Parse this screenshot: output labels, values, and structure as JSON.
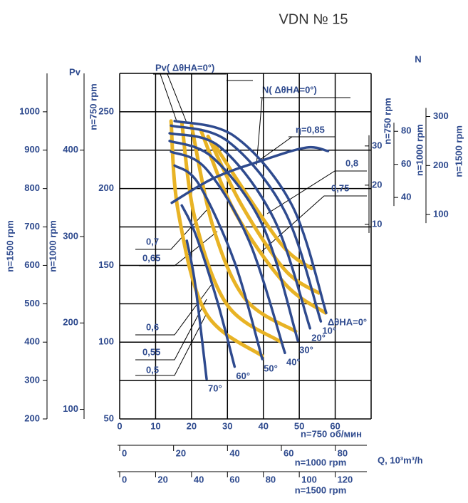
{
  "chart_data": {
    "type": "line",
    "title": "VDN № 15",
    "xlim": [
      0,
      70
    ],
    "xticks": [
      0,
      10,
      20,
      30,
      40,
      50,
      60
    ],
    "x_label": "n=750 об/мин",
    "ylim": [
      50,
      275
    ],
    "yticks": [
      50,
      100,
      150,
      200,
      250
    ],
    "y_minor": [
      75,
      125,
      175,
      225
    ],
    "y_label": "Pv",
    "y_axis_speed": "n=750 rpm",
    "grid": true,
    "y2_label": "N",
    "y2lim": [
      -39.6,
      48.5
    ],
    "y2ticks": [
      10,
      20,
      30
    ],
    "y2_axis_speed": "n=750 rpm",
    "extra_y_axes": [
      {
        "label": "n=1500 rpm",
        "side": "left",
        "ylim": [
          200,
          1100
        ],
        "yticks": [
          200,
          300,
          400,
          500,
          600,
          700,
          800,
          900,
          1000
        ]
      },
      {
        "label": "n=1000 rpm",
        "side": "left",
        "ylim": [
          88.9,
          488.9
        ],
        "yticks": [
          100,
          200,
          300,
          400
        ]
      },
      {
        "label": "n=1000 rpm",
        "side": "right",
        "ylim": [
          -93.9,
          115
        ],
        "yticks": [
          40,
          60,
          80
        ]
      },
      {
        "label": "n=1500 rpm",
        "side": "right",
        "ylim": [
          -317,
          388
        ],
        "yticks": [
          100,
          200,
          300
        ]
      }
    ],
    "extra_x_axes": [
      {
        "label": "n=1000 rpm",
        "xlim": [
          0,
          93.3
        ],
        "xticks": [
          0,
          20,
          40,
          60,
          80
        ]
      },
      {
        "label": "n=1500 rpm",
        "xlim": [
          0,
          140
        ],
        "xticks": [
          0,
          20,
          40,
          60,
          80,
          100,
          120
        ]
      }
    ],
    "q_label": "Q, 10³m³/h",
    "pv_curve_label": "Pv( ΔθНА=0°)",
    "n_curve_label": "N( ΔθНА=0°)",
    "efficiency_labels": [
      "η=0,85",
      "0,8",
      "0,75",
      "0,7",
      "0,65",
      "0,6",
      "0,55",
      "0,5"
    ],
    "series": [
      {
        "name": "ΔθНА=0°",
        "color": "#2e4a8e",
        "x": [
          15.3,
          32,
          48,
          57.5
        ],
        "values": [
          244,
          234,
          189,
          119
        ]
      },
      {
        "name": "10°",
        "color": "#2e4a8e",
        "x": [
          14.3,
          30,
          46,
          56
        ],
        "values": [
          241,
          231,
          185,
          113.5
        ]
      },
      {
        "name": "20°",
        "color": "#2e4a8e",
        "x": [
          13.9,
          28,
          43,
          53
        ],
        "values": [
          236,
          227,
          180,
          109
        ]
      },
      {
        "name": "30°",
        "color": "#2e4a8e",
        "x": [
          13.9,
          26,
          40,
          49.6
        ],
        "values": [
          231,
          220,
          175,
          101
        ]
      },
      {
        "name": "40°",
        "color": "#2e4a8e",
        "x": [
          14.3,
          24,
          36,
          46
        ],
        "values": [
          224,
          213,
          166,
          93
        ]
      },
      {
        "name": "50°",
        "color": "#2e4a8e",
        "x": [
          15.3,
          22,
          32,
          39.7
        ],
        "values": [
          215,
          203,
          152,
          89
        ]
      },
      {
        "name": "60°",
        "color": "#2e4a8e",
        "x": [
          17.3,
          21,
          27,
          32
        ],
        "values": [
          189,
          171,
          128,
          84
        ]
      },
      {
        "name": "70°",
        "color": "#2e4a8e",
        "x": [
          18.7,
          21,
          24.2
        ],
        "values": [
          166,
          138,
          76
        ]
      },
      {
        "color": "#e8b325",
        "x": [
          14.3,
          16.3,
          24,
          39.7
        ],
        "values": [
          244,
          185,
          119,
          91
        ]
      },
      {
        "color": "#e8b325",
        "x": [
          17.3,
          21,
          30,
          45
        ],
        "values": [
          243,
          180,
          124,
          100
        ]
      },
      {
        "color": "#e8b325",
        "x": [
          20,
          26,
          35,
          49
        ],
        "values": [
          241,
          175,
          128,
          107
        ]
      },
      {
        "color": "#e8b325",
        "x": [
          22.6,
          32,
          46,
          57.3
        ],
        "values": [
          238,
          185,
          138,
          119
        ]
      },
      {
        "color": "#e8b325",
        "x": [
          24.6,
          34,
          46,
          55.4
        ],
        "values": [
          234,
          189,
          147,
          132
        ]
      },
      {
        "color": "#e8b325",
        "x": [
          26.6,
          36,
          46,
          53.4
        ],
        "values": [
          228,
          194,
          161,
          148
        ]
      },
      {
        "color": "#2e4a8e",
        "axis": "y2",
        "x": [
          14.5,
          26.2,
          40,
          52,
          58
        ],
        "values": [
          15.5,
          21.8,
          26.4,
          29.6,
          28.7
        ]
      }
    ]
  }
}
